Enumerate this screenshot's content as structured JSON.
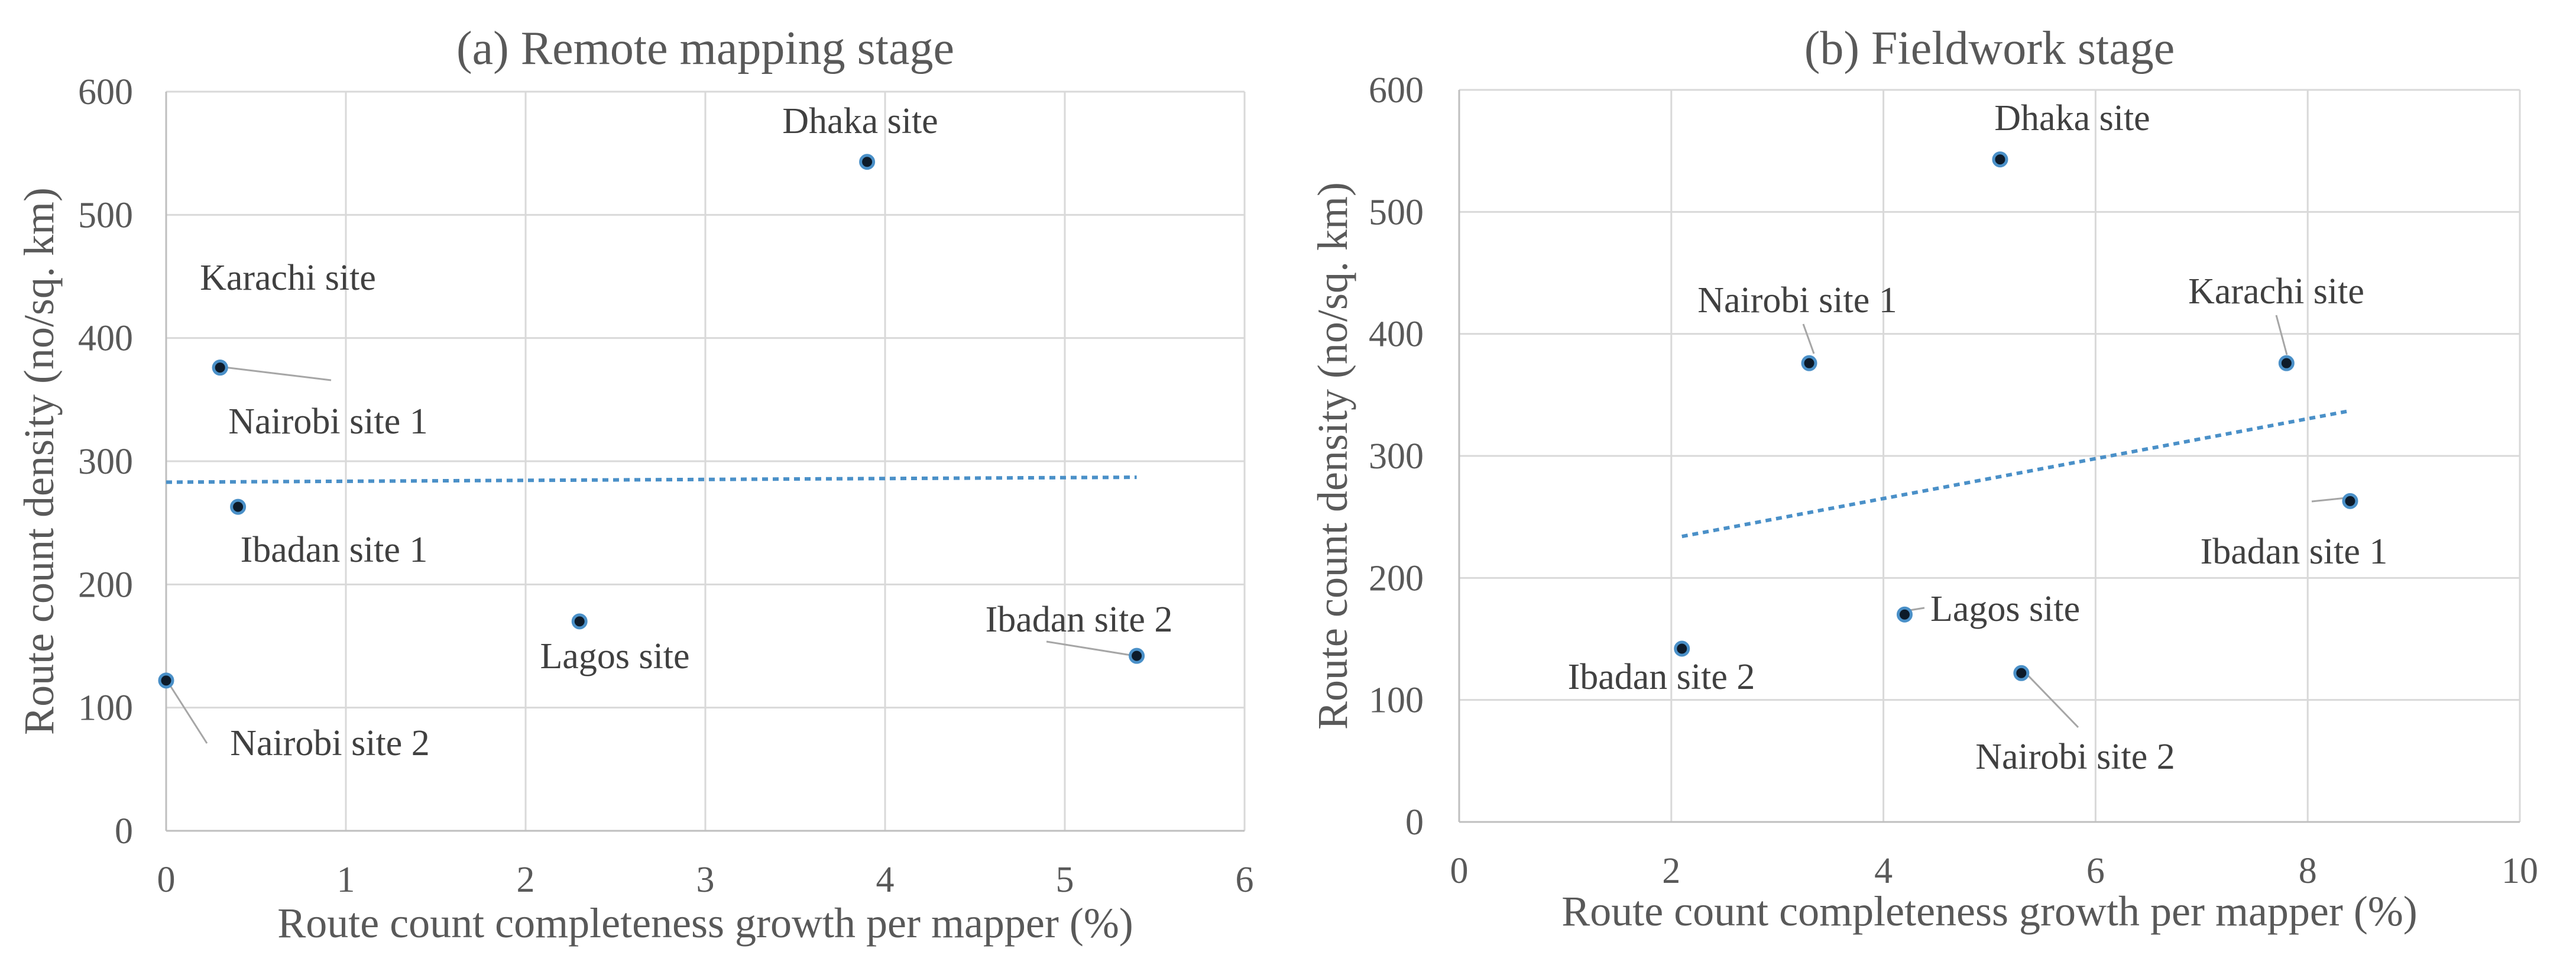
{
  "chart_data": [
    {
      "type": "scatter",
      "title": "(a) Remote mapping stage",
      "xlabel": "Route count completeness growth per mapper (%)",
      "ylabel": "Route count density (no/sq. km)",
      "xlim": [
        0,
        6
      ],
      "ylim": [
        0,
        600
      ],
      "xticks": [
        "0",
        "1",
        "2",
        "3",
        "4",
        "5",
        "6"
      ],
      "yticks": [
        "0",
        "100",
        "200",
        "300",
        "400",
        "500",
        "600"
      ],
      "grid": true,
      "points": [
        {
          "label": "Dhaka site",
          "x": 3.9,
          "y": 543
        },
        {
          "label": "Karachi site",
          "x": 0.3,
          "y": 376
        },
        {
          "label": "Nairobi site 1",
          "x": 0.3,
          "y": 376
        },
        {
          "label": "Ibadan site 1",
          "x": 0.4,
          "y": 263
        },
        {
          "label": "Lagos site",
          "x": 2.3,
          "y": 170
        },
        {
          "label": "Ibadan site 2",
          "x": 5.4,
          "y": 142
        },
        {
          "label": "Nairobi site 2",
          "x": 0.0,
          "y": 122
        }
      ],
      "trendline": {
        "type": "linear",
        "x": [
          0,
          5.4
        ],
        "y": [
          283,
          287
        ]
      }
    },
    {
      "type": "scatter",
      "title": "(b) Fieldwork stage",
      "xlabel": "Route count completeness growth per mapper (%)",
      "ylabel": "Route count density (no/sq. km)",
      "xlim": [
        0,
        10
      ],
      "ylim": [
        0,
        600
      ],
      "xticks": [
        "0",
        "2",
        "4",
        "6",
        "8",
        "10"
      ],
      "yticks": [
        "0",
        "100",
        "200",
        "300",
        "400",
        "500",
        "600"
      ],
      "grid": true,
      "points": [
        {
          "label": "Dhaka site",
          "x": 5.1,
          "y": 543
        },
        {
          "label": "Nairobi site 1",
          "x": 3.3,
          "y": 376
        },
        {
          "label": "Karachi site",
          "x": 7.8,
          "y": 376
        },
        {
          "label": "Ibadan site 1",
          "x": 8.4,
          "y": 263
        },
        {
          "label": "Lagos site",
          "x": 4.2,
          "y": 170
        },
        {
          "label": "Ibadan site 2",
          "x": 2.1,
          "y": 142
        },
        {
          "label": "Nairobi site 2",
          "x": 5.3,
          "y": 122
        }
      ],
      "trendline": {
        "type": "linear",
        "x": [
          2.1,
          8.4
        ],
        "y": [
          234,
          337
        ]
      }
    }
  ],
  "colors": {
    "marker_fill": "#0d1b2a",
    "marker_edge": "#4a90c8",
    "trendline": "#4a90c8"
  }
}
